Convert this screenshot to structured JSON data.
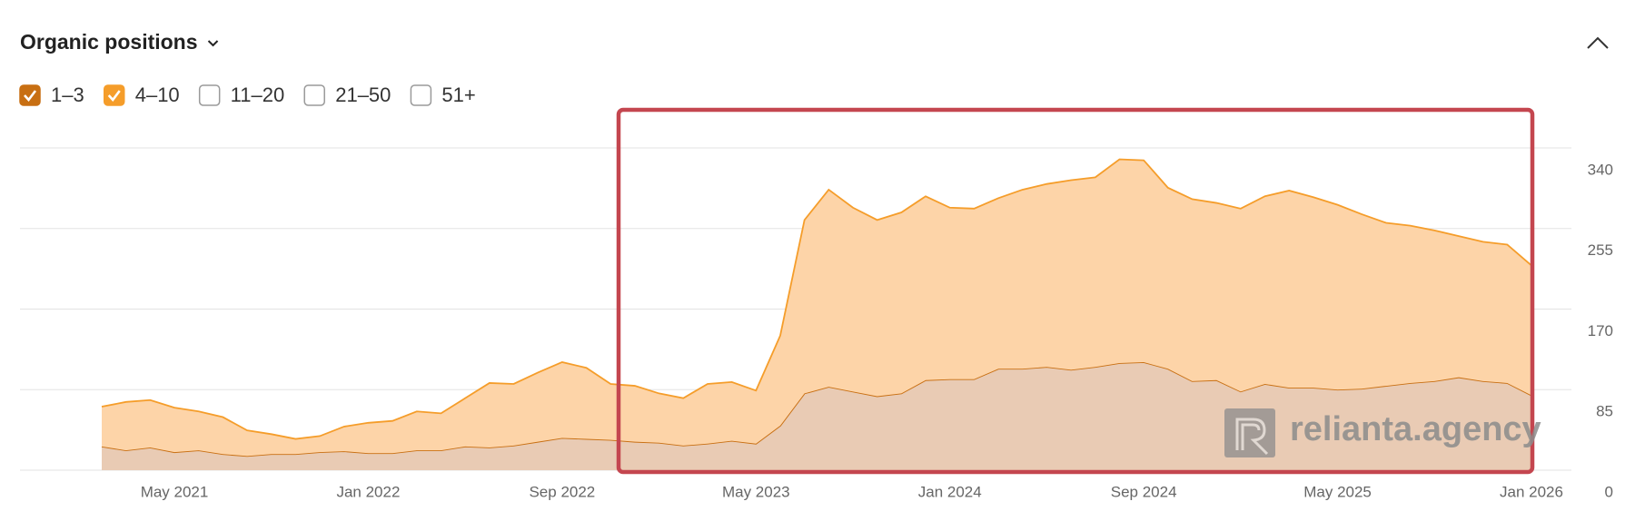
{
  "chart_data": {
    "type": "stacked-area",
    "title": "Organic positions",
    "x": [
      "2021-02",
      "2021-03",
      "2021-04",
      "2021-05",
      "2021-06",
      "2021-07",
      "2021-08",
      "2021-09",
      "2021-10",
      "2021-11",
      "2021-12",
      "2022-01",
      "2022-02",
      "2022-03",
      "2022-04",
      "2022-05",
      "2022-06",
      "2022-07",
      "2022-08",
      "2022-09",
      "2022-10",
      "2022-11",
      "2022-12",
      "2023-01",
      "2023-02",
      "2023-03",
      "2023-04",
      "2023-05",
      "2023-06",
      "2023-07",
      "2023-08",
      "2023-09",
      "2023-10",
      "2023-11",
      "2023-12",
      "2024-01",
      "2024-02",
      "2024-03",
      "2024-04",
      "2024-05",
      "2024-06",
      "2024-07",
      "2024-08",
      "2024-09",
      "2024-10",
      "2024-11",
      "2024-12",
      "2025-01",
      "2025-02",
      "2025-03",
      "2025-04",
      "2025-05",
      "2025-06",
      "2025-07",
      "2025-08",
      "2025-09",
      "2025-10",
      "2025-11",
      "2025-12",
      "2026-01"
    ],
    "series": [
      {
        "name": "1–3",
        "checked": true,
        "color": "#c86f12",
        "fill": "#e9cbb4",
        "values": [
          25,
          21,
          24,
          19,
          21,
          17,
          15,
          17,
          17,
          19,
          20,
          18,
          18,
          21,
          21,
          25,
          24,
          26,
          30,
          34,
          33,
          32,
          30,
          29,
          26,
          28,
          31,
          28,
          47,
          81,
          88,
          83,
          78,
          81,
          95,
          96,
          96,
          107,
          107,
          109,
          106,
          109,
          113,
          114,
          107,
          94,
          95,
          83,
          91,
          87,
          87,
          85,
          86,
          89,
          92,
          94,
          98,
          94,
          92,
          79
        ]
      },
      {
        "name": "4–10",
        "checked": true,
        "color": "#f59d2a",
        "fill": "#fdd4a8",
        "values": [
          42,
          51,
          50,
          47,
          41,
          39,
          27,
          21,
          16,
          17,
          26,
          32,
          34,
          41,
          39,
          51,
          68,
          65,
          73,
          80,
          75,
          59,
          59,
          52,
          50,
          63,
          62,
          56,
          95,
          183,
          208,
          194,
          186,
          191,
          194,
          181,
          180,
          180,
          189,
          193,
          200,
          200,
          215,
          213,
          191,
          192,
          187,
          193,
          198,
          208,
          201,
          195,
          184,
          172,
          166,
          159,
          149,
          147,
          146,
          137
        ]
      }
    ],
    "other_positions": [
      "11–20",
      "21–50",
      "51+"
    ],
    "ylim": [
      0,
      340
    ],
    "yticks": [
      0,
      85,
      170,
      255,
      340
    ],
    "grid": true,
    "xticks": [
      {
        "value": "2021-05",
        "label": "May 2021"
      },
      {
        "value": "2022-01",
        "label": "Jan 2022"
      },
      {
        "value": "2022-09",
        "label": "Sep 2022"
      },
      {
        "value": "2023-05",
        "label": "May 2023"
      },
      {
        "value": "2024-01",
        "label": "Jan 2024"
      },
      {
        "value": "2024-09",
        "label": "Sep 2024"
      },
      {
        "value": "2025-05",
        "label": "May 2025"
      },
      {
        "value": "2026-01",
        "label": "Jan 2026"
      }
    ],
    "watermark": "relianta.agency"
  }
}
